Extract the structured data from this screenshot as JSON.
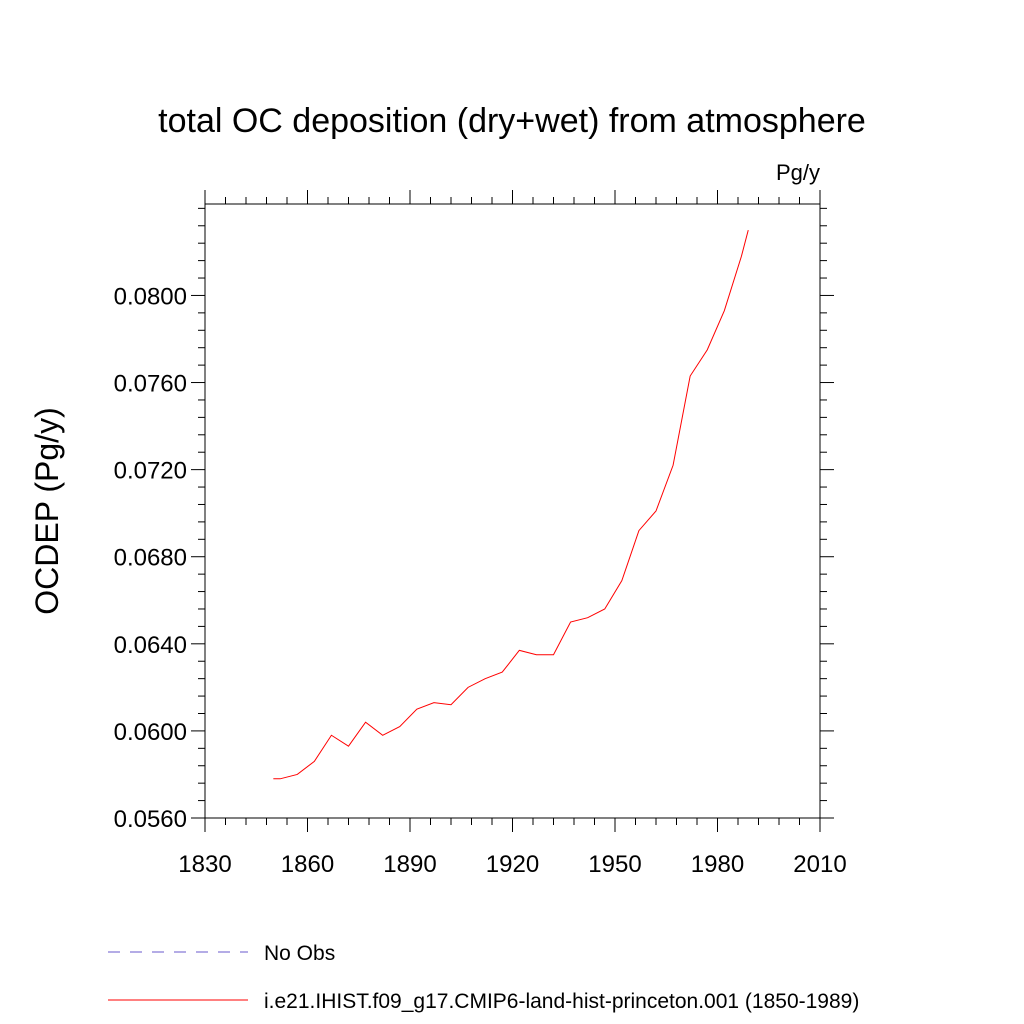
{
  "chart_data": {
    "type": "line",
    "title": "total OC deposition (dry+wet) from atmosphere",
    "units_label": "Pg/y",
    "ylabel": "OCDEP  (Pg/y)",
    "xlabel": "",
    "xlim": [
      1830,
      2010
    ],
    "ylim": [
      0.056,
      0.0842
    ],
    "x_ticks": [
      1830,
      1860,
      1890,
      1920,
      1950,
      1980,
      2010
    ],
    "x_tick_labels": [
      "1830",
      "1860",
      "1890",
      "1920",
      "1950",
      "1980",
      "2010"
    ],
    "y_ticks": [
      0.056,
      0.06,
      0.064,
      0.068,
      0.072,
      0.076,
      0.08
    ],
    "y_tick_labels": [
      "0.0560",
      "0.0600",
      "0.0640",
      "0.0680",
      "0.0720",
      "0.0760",
      "0.0800"
    ],
    "grid": false,
    "legend_position": "bottom",
    "series": [
      {
        "name": "No Obs",
        "color": "#6a5acd",
        "style": "dashed",
        "x": [],
        "y": []
      },
      {
        "name": "i.e21.IHIST.f09_g17.CMIP6-land-hist-princeton.001 (1850-1989)",
        "color": "#ff0000",
        "style": "solid",
        "x": [
          1850,
          1852,
          1857,
          1862,
          1867,
          1872,
          1877,
          1882,
          1887,
          1892,
          1897,
          1902,
          1907,
          1912,
          1917,
          1922,
          1927,
          1932,
          1937,
          1942,
          1947,
          1952,
          1957,
          1962,
          1967,
          1972,
          1977,
          1982,
          1987,
          1989
        ],
        "y": [
          0.0578,
          0.0578,
          0.058,
          0.0586,
          0.0598,
          0.0593,
          0.0604,
          0.0598,
          0.0602,
          0.061,
          0.0613,
          0.0612,
          0.062,
          0.0624,
          0.0627,
          0.0637,
          0.0635,
          0.0635,
          0.065,
          0.0652,
          0.0656,
          0.0669,
          0.0692,
          0.0701,
          0.0722,
          0.0763,
          0.0775,
          0.0793,
          0.0818,
          0.083
        ]
      }
    ]
  }
}
